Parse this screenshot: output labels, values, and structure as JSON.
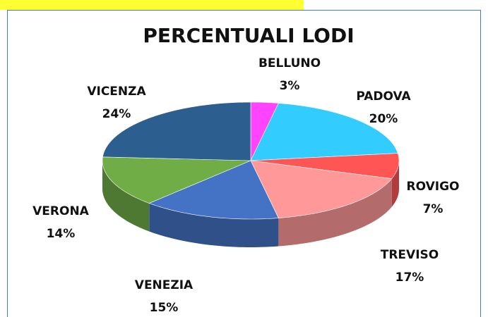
{
  "chart_data": {
    "type": "pie",
    "title": "PERCENTUALI LODI",
    "categories": [
      "BELLUNO",
      "PADOVA",
      "ROVIGO",
      "TREVISO",
      "VENEZIA",
      "VERONA",
      "VICENZA"
    ],
    "values": [
      3,
      20,
      7,
      17,
      15,
      14,
      24
    ],
    "value_labels": [
      "3%",
      "20%",
      "7%",
      "17%",
      "15%",
      "14%",
      "24%"
    ],
    "colors": [
      "#ff44ff",
      "#33ccff",
      "#ff5555",
      "#ff9999",
      "#4472c4",
      "#70ad47",
      "#2c5f8f"
    ]
  }
}
